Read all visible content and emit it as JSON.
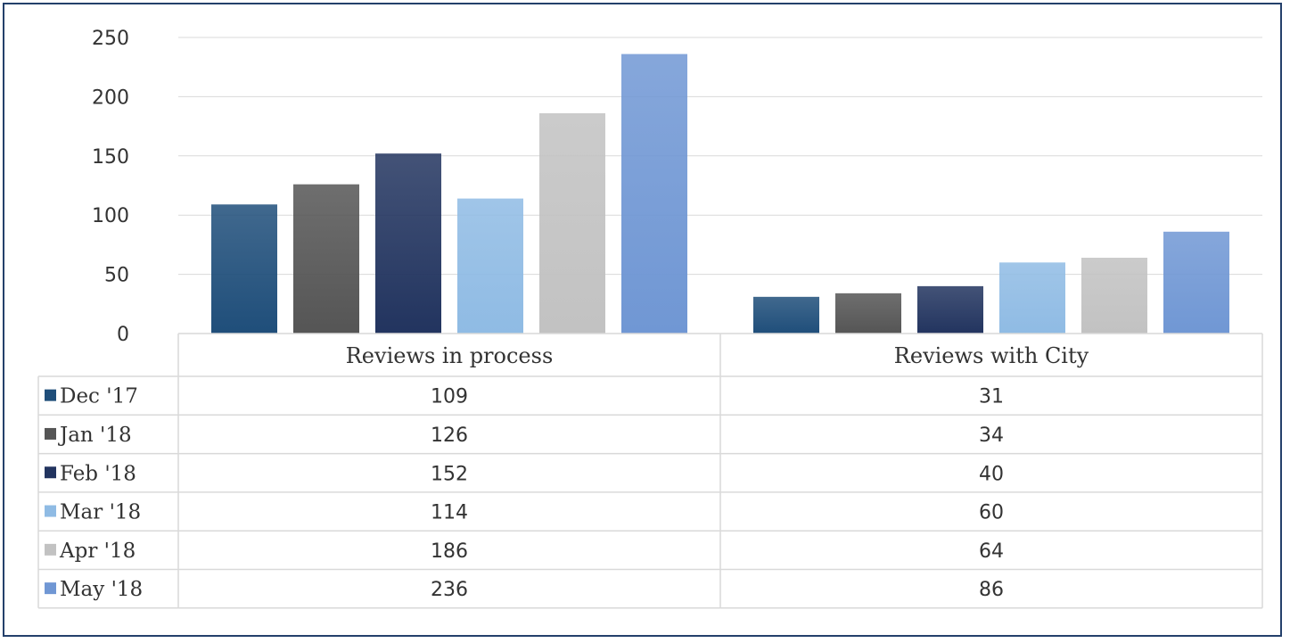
{
  "chart_data": {
    "type": "bar",
    "categories": [
      "Reviews in process",
      "Reviews with City"
    ],
    "series": [
      {
        "name": "Dec '17",
        "values": [
          109,
          31
        ],
        "color": "#1f4e7a"
      },
      {
        "name": "Jan '18",
        "values": [
          126,
          34
        ],
        "color": "#555555"
      },
      {
        "name": "Feb '18",
        "values": [
          152,
          40
        ],
        "color": "#22345f"
      },
      {
        "name": "Mar '18",
        "values": [
          114,
          60
        ],
        "color": "#8fbbe4"
      },
      {
        "name": "Apr '18",
        "values": [
          186,
          64
        ],
        "color": "#c2c2c2"
      },
      {
        "name": "May '18",
        "values": [
          236,
          86
        ],
        "color": "#7097d4"
      }
    ],
    "y_ticks": [
      0,
      50,
      100,
      150,
      200,
      250
    ],
    "ylim": [
      0,
      250
    ],
    "grid": true,
    "legend": "data-table-left",
    "title": "",
    "xlabel": "",
    "ylabel": ""
  },
  "colors": {
    "frame_border": "#24406b",
    "gridline": "#d9d9d9",
    "table_border": "#d9d9d9",
    "text": "#333333"
  }
}
